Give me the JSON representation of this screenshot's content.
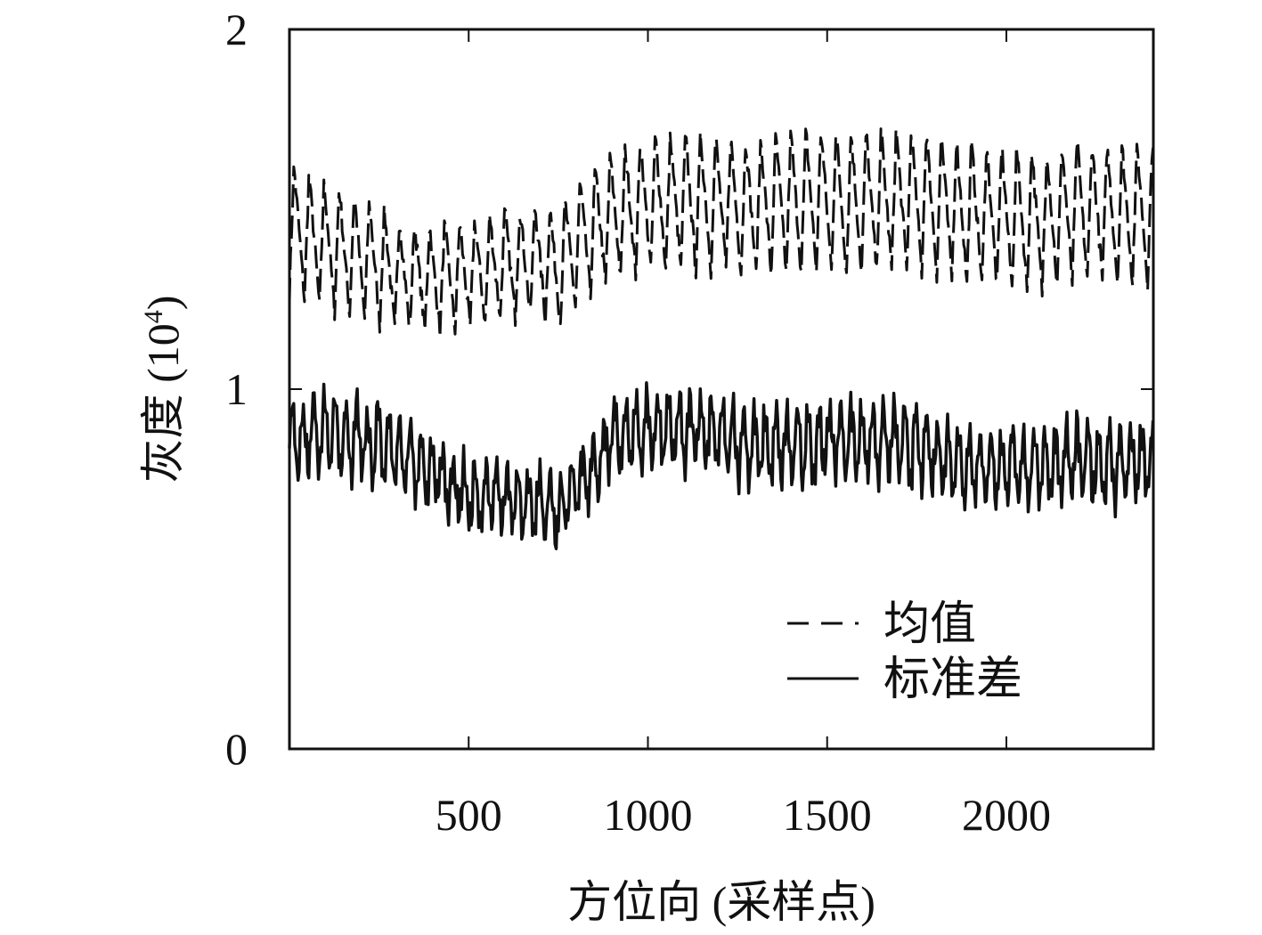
{
  "chart_data": {
    "type": "line",
    "xlabel": "方位向 (采样点)",
    "ylabel_main": "灰度 (10",
    "ylabel_sup": "4",
    "ylabel_close": ")",
    "xlim": [
      0,
      2410
    ],
    "ylim": [
      0,
      2
    ],
    "x_ticks": [
      500,
      1000,
      1500,
      2000
    ],
    "x_tick_labels": [
      "500",
      "1000",
      "1500",
      "2000"
    ],
    "y_ticks": [
      0,
      1,
      2
    ],
    "y_tick_labels": [
      "0",
      "1",
      "2"
    ],
    "grid": false,
    "legend_position": "bottom-right",
    "line_color": "#111111",
    "series": [
      {
        "name": "均值",
        "style": "dashed",
        "x": [
          0,
          100,
          200,
          300,
          400,
          500,
          600,
          700,
          750,
          800,
          900,
          1000,
          1100,
          1200,
          1300,
          1400,
          1500,
          1600,
          1700,
          1800,
          1900,
          2000,
          2100,
          2200,
          2300,
          2410
        ],
        "baseline": [
          1.45,
          1.4,
          1.37,
          1.32,
          1.31,
          1.32,
          1.35,
          1.36,
          1.34,
          1.4,
          1.48,
          1.52,
          1.52,
          1.52,
          1.51,
          1.52,
          1.53,
          1.52,
          1.53,
          1.52,
          1.49,
          1.48,
          1.47,
          1.5,
          1.49,
          1.49
        ],
        "amplitude": [
          0.18,
          0.18,
          0.17,
          0.16,
          0.15,
          0.15,
          0.15,
          0.16,
          0.16,
          0.17,
          0.18,
          0.19,
          0.19,
          0.19,
          0.19,
          0.2,
          0.2,
          0.2,
          0.2,
          0.2,
          0.2,
          0.2,
          0.2,
          0.2,
          0.19,
          0.19
        ],
        "period": 42
      },
      {
        "name": "标准差",
        "style": "solid",
        "x": [
          0,
          100,
          200,
          300,
          400,
          500,
          600,
          700,
          750,
          800,
          900,
          1000,
          1100,
          1200,
          1300,
          1400,
          1500,
          1600,
          1700,
          1800,
          1900,
          2000,
          2100,
          2200,
          2300,
          2410
        ],
        "baseline": [
          0.86,
          0.88,
          0.86,
          0.83,
          0.77,
          0.7,
          0.7,
          0.68,
          0.66,
          0.72,
          0.86,
          0.89,
          0.89,
          0.87,
          0.84,
          0.84,
          0.86,
          0.86,
          0.85,
          0.82,
          0.79,
          0.78,
          0.79,
          0.8,
          0.79,
          0.8
        ],
        "amplitude": [
          0.09,
          0.09,
          0.09,
          0.09,
          0.08,
          0.08,
          0.08,
          0.08,
          0.08,
          0.08,
          0.09,
          0.09,
          0.09,
          0.09,
          0.09,
          0.09,
          0.09,
          0.09,
          0.09,
          0.09,
          0.09,
          0.09,
          0.09,
          0.09,
          0.09,
          0.09
        ],
        "period": 30
      }
    ],
    "legend": [
      {
        "label": "均值",
        "style": "dashed"
      },
      {
        "label": "标准差",
        "style": "solid"
      }
    ]
  }
}
